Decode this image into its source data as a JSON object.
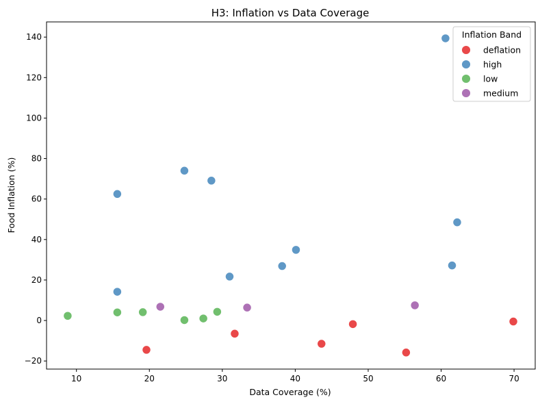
{
  "chart_data": {
    "type": "scatter",
    "title": "H3: Inflation vs Data Coverage",
    "xlabel": "Data Coverage (%)",
    "ylabel": "Food Inflation (%)",
    "xlim": [
      5.9,
      72.9
    ],
    "ylim": [
      -24,
      147.5
    ],
    "xticks": [
      10,
      20,
      30,
      40,
      50,
      60,
      70
    ],
    "yticks": [
      -20,
      0,
      20,
      40,
      60,
      80,
      100,
      120,
      140
    ],
    "grid": false,
    "legend": {
      "title": "Inflation Band",
      "placement": "top-right"
    },
    "series": [
      {
        "name": "deflation",
        "color": "#e41a1c",
        "points": [
          {
            "x": 19.6,
            "y": -14.5
          },
          {
            "x": 31.7,
            "y": -6.5
          },
          {
            "x": 43.6,
            "y": -11.5
          },
          {
            "x": 47.9,
            "y": -1.8
          },
          {
            "x": 55.2,
            "y": -15.8
          },
          {
            "x": 69.9,
            "y": -0.5
          }
        ]
      },
      {
        "name": "high",
        "color": "#377eb8",
        "points": [
          {
            "x": 15.6,
            "y": 62.5
          },
          {
            "x": 15.6,
            "y": 14.2
          },
          {
            "x": 24.8,
            "y": 74.0
          },
          {
            "x": 28.5,
            "y": 69.1
          },
          {
            "x": 31.0,
            "y": 21.7
          },
          {
            "x": 38.2,
            "y": 26.9
          },
          {
            "x": 40.1,
            "y": 34.9
          },
          {
            "x": 60.6,
            "y": 139.4
          },
          {
            "x": 61.5,
            "y": 27.2
          },
          {
            "x": 62.2,
            "y": 48.5
          }
        ]
      },
      {
        "name": "low",
        "color": "#4daf4a",
        "points": [
          {
            "x": 8.8,
            "y": 2.3
          },
          {
            "x": 15.6,
            "y": 4.0
          },
          {
            "x": 19.1,
            "y": 4.1
          },
          {
            "x": 24.8,
            "y": 0.2
          },
          {
            "x": 27.4,
            "y": 1.0
          },
          {
            "x": 29.3,
            "y": 4.3
          }
        ]
      },
      {
        "name": "medium",
        "color": "#984ea3",
        "points": [
          {
            "x": 21.5,
            "y": 6.8
          },
          {
            "x": 33.4,
            "y": 6.4
          },
          {
            "x": 56.4,
            "y": 7.5
          }
        ]
      }
    ]
  }
}
